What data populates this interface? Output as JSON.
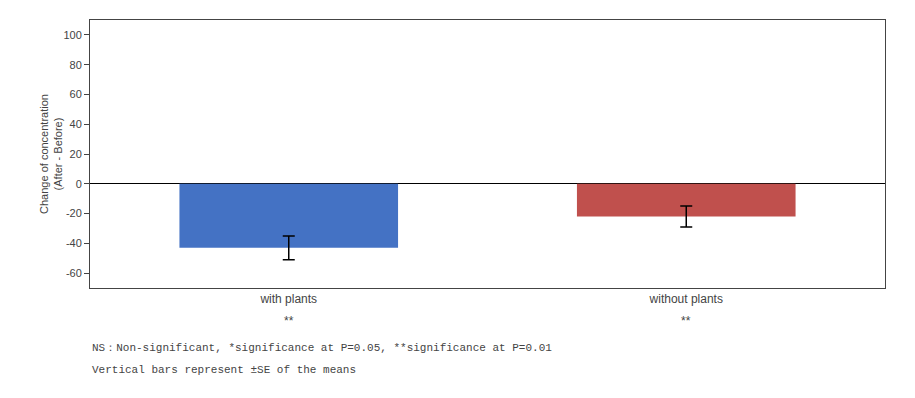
{
  "chart_data": {
    "type": "bar",
    "categories": [
      "with plants",
      "without plants"
    ],
    "values": [
      -43,
      -22
    ],
    "errors": [
      8,
      7
    ],
    "colors": [
      "#4472C4",
      "#C0504D"
    ],
    "ylabel": "Change of concentration\n(After - Before)",
    "ylim": [
      -70,
      110
    ],
    "yticks": [
      -60,
      -40,
      -20,
      0,
      20,
      40,
      60,
      80,
      100
    ],
    "grid": false,
    "significance_labels": [
      "**",
      "**"
    ],
    "footnotes": [
      "NS：Non-significant, *significance at P=0.05, **significance at P=0.01",
      "Vertical bars represent ±SE of the means"
    ]
  }
}
